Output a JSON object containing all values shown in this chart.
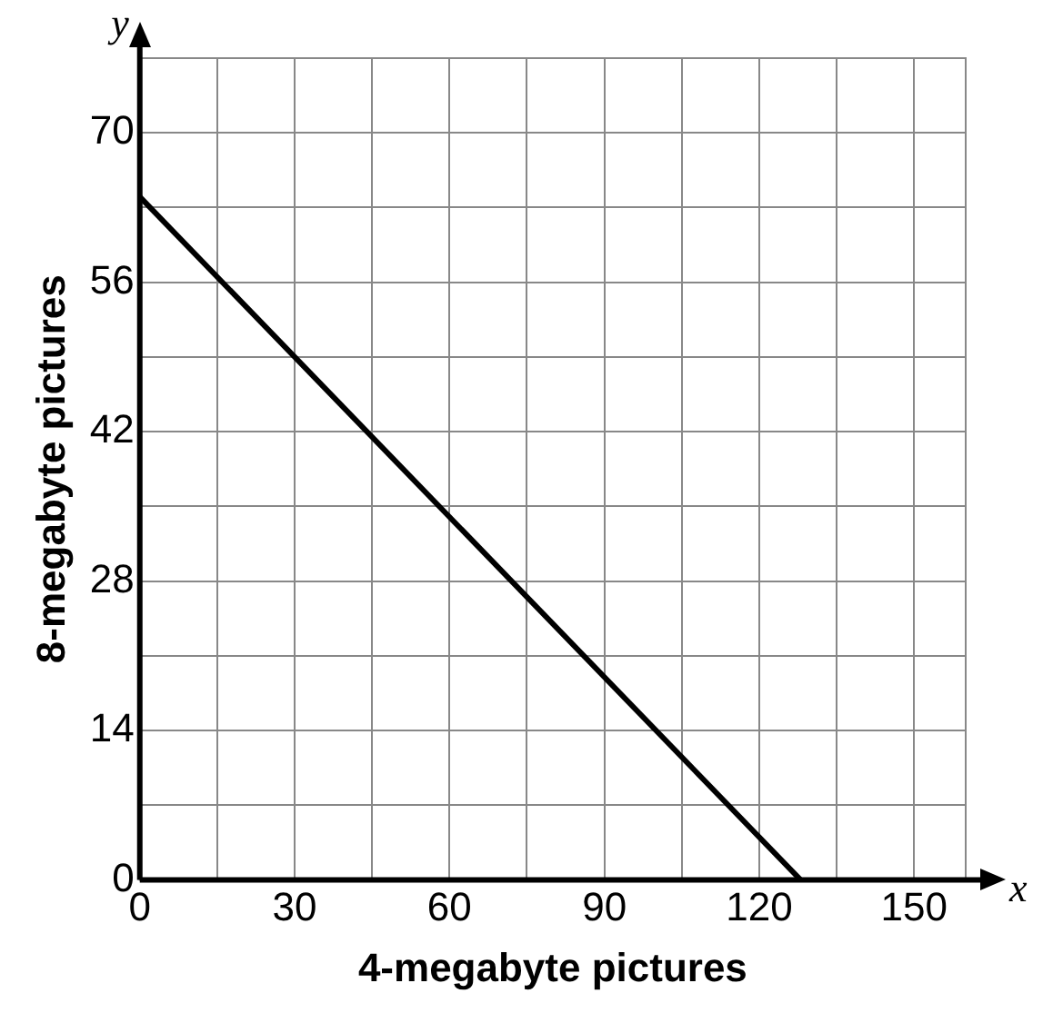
{
  "chart_data": {
    "type": "line",
    "xlabel": "4-megabyte pictures",
    "ylabel": "8-megabyte pictures",
    "annotations": [
      "x",
      "y"
    ],
    "x": [
      0,
      128
    ],
    "series": [
      {
        "color": "#000000",
        "values": [
          64,
          0
        ]
      }
    ],
    "xlim": [
      0,
      160
    ],
    "ylim": [
      0,
      77
    ],
    "xticks": [
      0,
      {
        "value": 15,
        "label": null
      },
      30,
      {
        "value": 45,
        "label": null
      },
      60,
      {
        "value": 75,
        "label": null
      },
      90,
      {
        "value": 105,
        "label": null
      },
      120,
      {
        "value": 135,
        "label": null
      },
      150
    ],
    "yticks": [
      0,
      {
        "value": 7,
        "label": null
      },
      14,
      {
        "value": 21,
        "label": null
      },
      28,
      {
        "value": 35,
        "label": null
      },
      42,
      {
        "value": 49,
        "label": null
      },
      56,
      {
        "value": 63,
        "label": null
      },
      70
    ],
    "grid": true,
    "legend": false,
    "marker": "none",
    "line_style": "solid"
  }
}
